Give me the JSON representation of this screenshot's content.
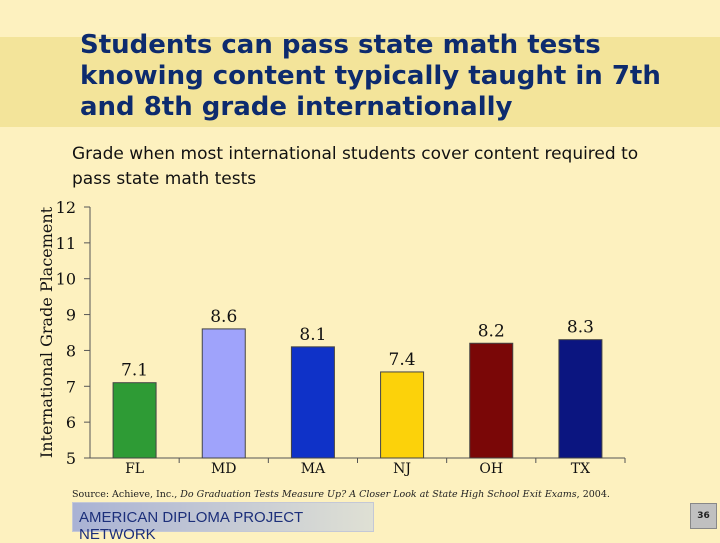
{
  "slide": {
    "title": "Students can pass state math tests knowing content typically taught in 7th and 8th grade internationally",
    "subtitle": "Grade when most international students cover content required to pass state math tests",
    "source_prefix": "Source: Achieve, Inc., ",
    "source_title": "Do Graduation Tests Measure Up? A Closer Look at State High School Exit Exams",
    "source_suffix": ", 2004.",
    "footer": "AMERICAN DIPLOMA PROJECT NETWORK",
    "page_number": "36"
  },
  "chart_data": {
    "type": "bar",
    "title": "",
    "xlabel": "",
    "ylabel": "International Grade Placement",
    "categories": [
      "FL",
      "MD",
      "MA",
      "NJ",
      "OH",
      "TX"
    ],
    "values": [
      7.1,
      8.6,
      8.1,
      7.4,
      8.2,
      8.3
    ],
    "value_labels": [
      "7.1",
      "8.6",
      "8.1",
      "7.4",
      "8.2",
      "8.3"
    ],
    "colors": [
      "#2e9b35",
      "#9fa3fb",
      "#0f32c8",
      "#fcd20a",
      "#7a0707",
      "#0b1580"
    ],
    "ylim": [
      5,
      12
    ],
    "yticks": [
      5,
      6,
      7,
      8,
      9,
      10,
      11,
      12
    ],
    "grid": false,
    "legend": "none"
  }
}
